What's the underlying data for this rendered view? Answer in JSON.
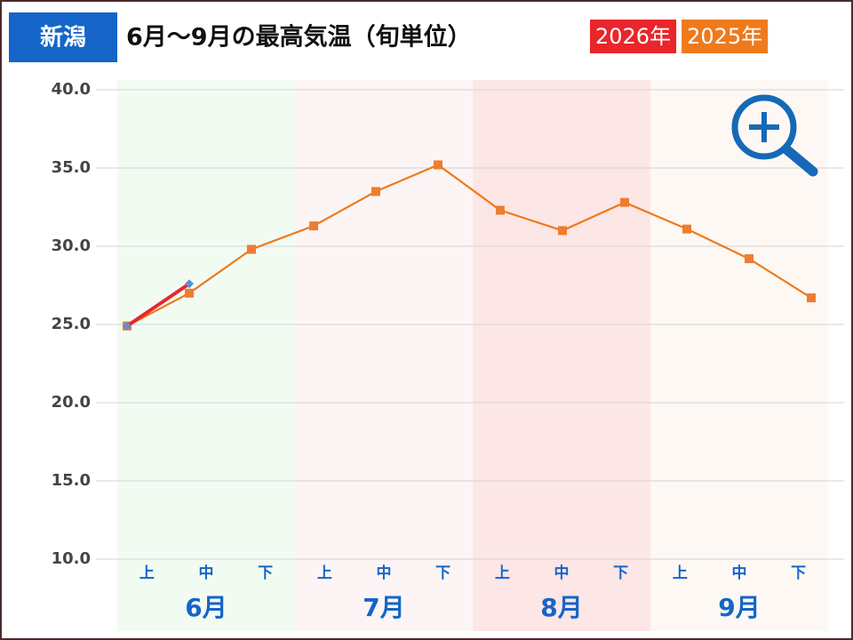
{
  "chart_data": {
    "type": "line",
    "region": "新潟",
    "title": "6月～9月の最高気温（旬単位）",
    "categories": [
      "上",
      "中",
      "下",
      "上",
      "中",
      "下",
      "上",
      "中",
      "下",
      "上",
      "中",
      "下"
    ],
    "groups": [
      {
        "label": "6月",
        "color": "#f2fbf2"
      },
      {
        "label": "7月",
        "color": "#fdf5f5"
      },
      {
        "label": "8月",
        "color": "#fde6e6"
      },
      {
        "label": "9月",
        "color": "#fdf8f3"
      }
    ],
    "series": [
      {
        "name": "2026年",
        "color": "#e8262b",
        "marker_color": "#5b8fd6",
        "marker": "diamond",
        "values": [
          24.9,
          27.6,
          null,
          null,
          null,
          null,
          null,
          null,
          null,
          null,
          null,
          null
        ]
      },
      {
        "name": "2025年",
        "color": "#ee7a1c",
        "marker_color": "#ed7d31",
        "marker": "square",
        "values": [
          24.9,
          27.0,
          29.8,
          31.3,
          33.5,
          35.2,
          32.3,
          31.0,
          32.8,
          31.1,
          29.2,
          26.7
        ]
      }
    ],
    "ylim": [
      10,
      40
    ],
    "yticks": [
      {
        "value": 10,
        "label": "10.0"
      },
      {
        "value": 15,
        "label": "15.0"
      },
      {
        "value": 20,
        "label": "20.0"
      },
      {
        "value": 25,
        "label": "25.0"
      },
      {
        "value": 30,
        "label": "30.0"
      },
      {
        "value": 35,
        "label": "35.0"
      },
      {
        "value": 40,
        "label": "40.0"
      }
    ],
    "grid": true
  }
}
